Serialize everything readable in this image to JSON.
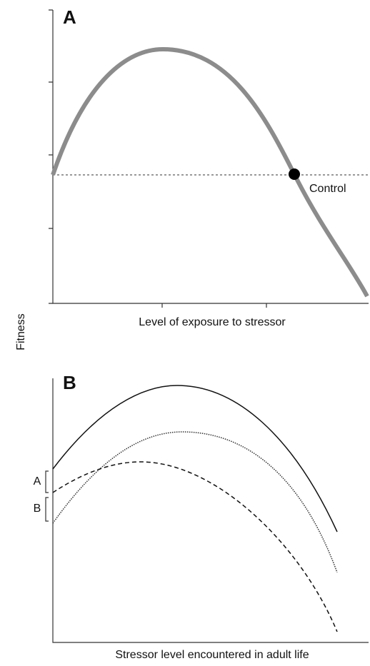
{
  "panel_a": {
    "label": "A",
    "annotation": "Control",
    "x_axis_label": "Level of exposure to stressor"
  },
  "y_axis_label": "Fitness",
  "panel_b": {
    "label": "B",
    "bracket_labels": [
      "A",
      "B"
    ],
    "x_axis_label": "Stressor level encountered in adult life"
  }
}
